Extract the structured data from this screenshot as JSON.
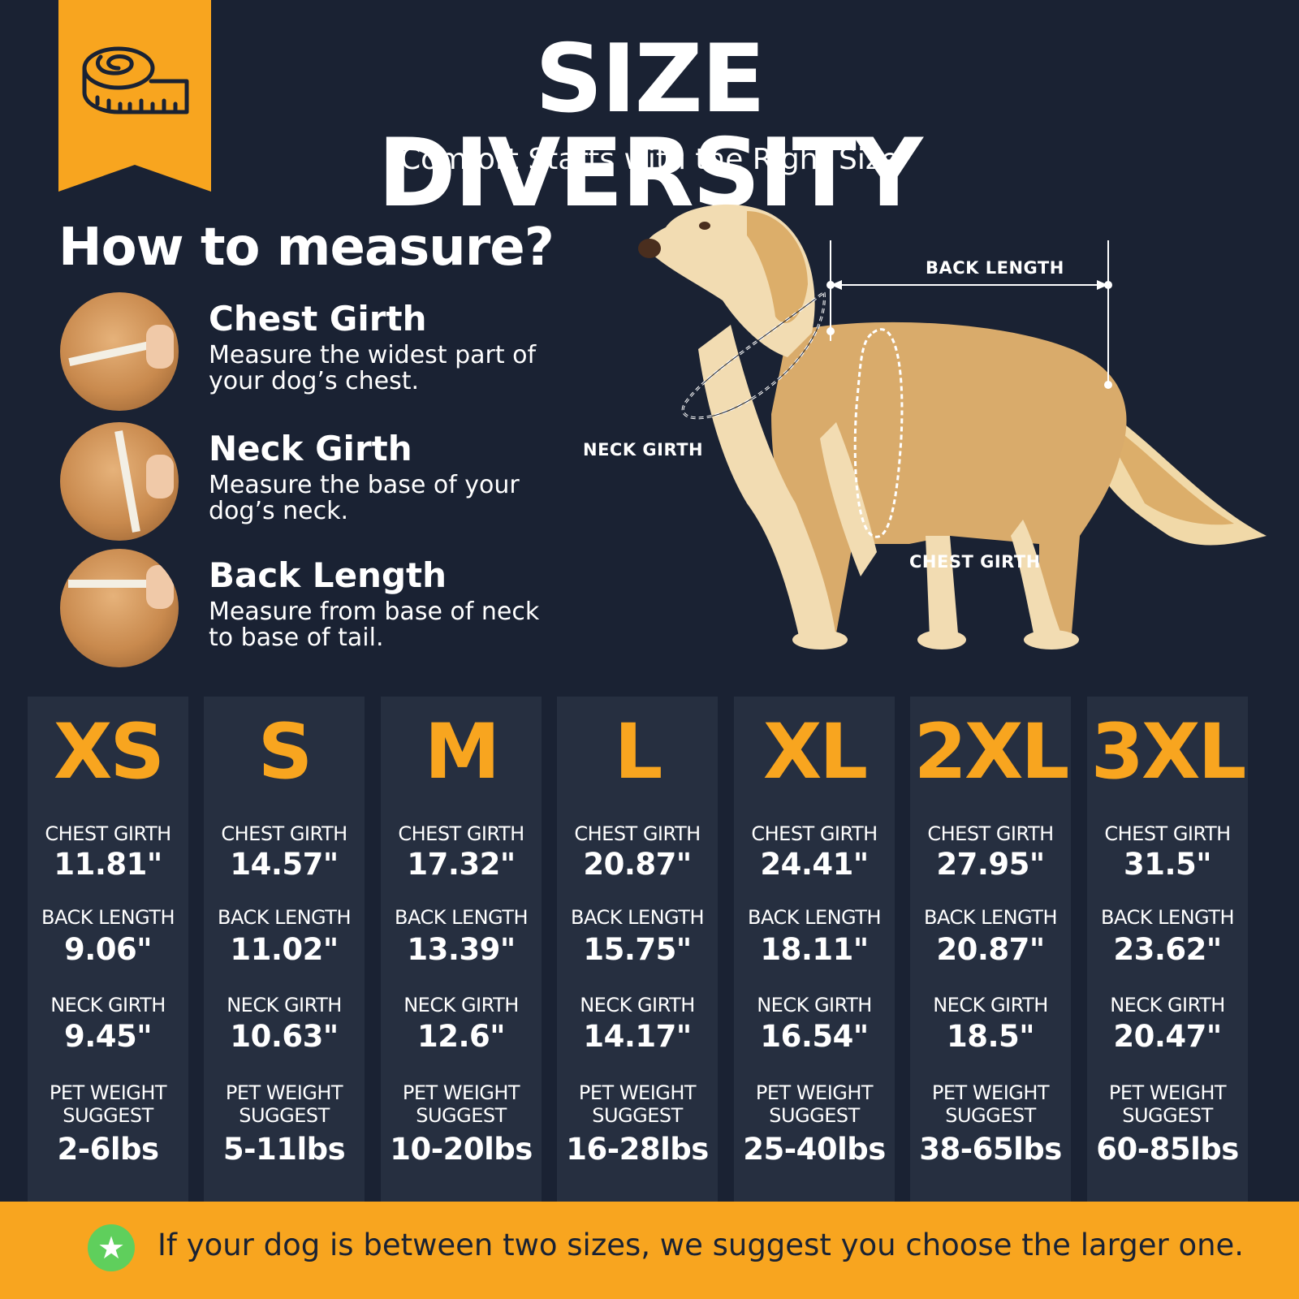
{
  "header": {
    "title": "SIZE DIVERSITY",
    "subtitle": "Comfort Starts with the Right Size",
    "icon": "measuring-tape-icon"
  },
  "howto": {
    "heading": "How to measure?",
    "steps": [
      {
        "title": "Chest Girth",
        "desc": "Measure the widest part of your dog’s chest."
      },
      {
        "title": "Neck Girth",
        "desc": "Measure the base of your dog’s neck."
      },
      {
        "title": "Back Length",
        "desc": "Measure from base of neck to base of tail."
      }
    ]
  },
  "diagram": {
    "back_length": "BACK LENGTH",
    "neck_girth": "NECK GIRTH",
    "chest_girth": "CHEST GIRTH"
  },
  "sizes": [
    {
      "size": "XS",
      "chest_label": "CHEST GIRTH",
      "chest": "11.81\"",
      "back_label": "BACK LENGTH",
      "back": "9.06\"",
      "neck_label": "NECK GIRTH",
      "neck": "9.45\"",
      "weight_label_1": "PET WEIGHT",
      "weight_label_2": "SUGGEST",
      "weight": "2-6lbs"
    },
    {
      "size": "S",
      "chest_label": "CHEST GIRTH",
      "chest": "14.57\"",
      "back_label": "BACK LENGTH",
      "back": "11.02\"",
      "neck_label": "NECK GIRTH",
      "neck": "10.63\"",
      "weight_label_1": "PET WEIGHT",
      "weight_label_2": "SUGGEST",
      "weight": "5-11lbs"
    },
    {
      "size": "M",
      "chest_label": "CHEST GIRTH",
      "chest": "17.32\"",
      "back_label": "BACK LENGTH",
      "back": "13.39\"",
      "neck_label": "NECK GIRTH",
      "neck": "12.6\"",
      "weight_label_1": "PET WEIGHT",
      "weight_label_2": "SUGGEST",
      "weight": "10-20lbs"
    },
    {
      "size": "L",
      "chest_label": "CHEST GIRTH",
      "chest": "20.87\"",
      "back_label": "BACK LENGTH",
      "back": "15.75\"",
      "neck_label": "NECK GIRTH",
      "neck": "14.17\"",
      "weight_label_1": "PET WEIGHT",
      "weight_label_2": "SUGGEST",
      "weight": "16-28lbs"
    },
    {
      "size": "XL",
      "chest_label": "CHEST GIRTH",
      "chest": "24.41\"",
      "back_label": "BACK LENGTH",
      "back": "18.11\"",
      "neck_label": "NECK GIRTH",
      "neck": "16.54\"",
      "weight_label_1": "PET WEIGHT",
      "weight_label_2": "SUGGEST",
      "weight": "25-40lbs"
    },
    {
      "size": "2XL",
      "chest_label": "CHEST GIRTH",
      "chest": "27.95\"",
      "back_label": "BACK LENGTH",
      "back": "20.87\"",
      "neck_label": "NECK GIRTH",
      "neck": "18.5\"",
      "weight_label_1": "PET WEIGHT",
      "weight_label_2": "SUGGEST",
      "weight": "38-65lbs"
    },
    {
      "size": "3XL",
      "chest_label": "CHEST GIRTH",
      "chest": "31.5\"",
      "back_label": "BACK LENGTH",
      "back": "23.62\"",
      "neck_label": "NECK GIRTH",
      "neck": "20.47\"",
      "weight_label_1": "PET WEIGHT",
      "weight_label_2": "SUGGEST",
      "weight": "60-85lbs"
    }
  ],
  "footer": {
    "note": "If your dog is between two sizes, we suggest you choose the larger one.",
    "icon": "star-icon"
  },
  "colors": {
    "background": "#1a2233",
    "accent": "#f8a51f",
    "panel": "#262f40",
    "star": "#5fcf5c"
  }
}
